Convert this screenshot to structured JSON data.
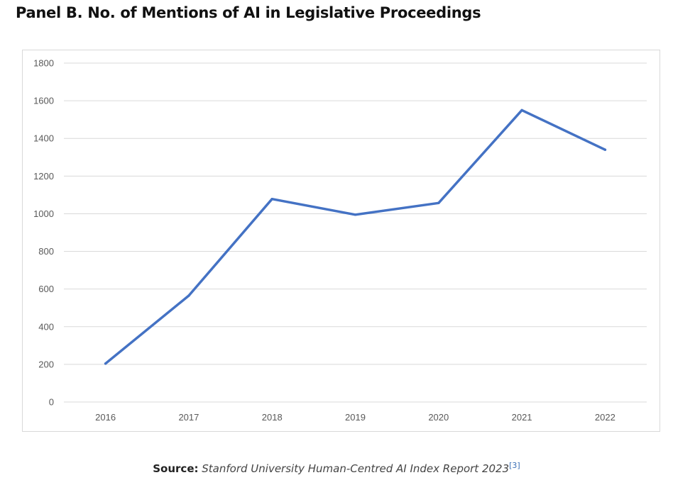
{
  "title": "Panel B. No. of Mentions of AI in Legislative Proceedings",
  "source": {
    "label": "Source:",
    "text": "Stanford University Human-Centred AI Index Report 2023",
    "ref": "[3]"
  },
  "chart_data": {
    "type": "line",
    "title": "",
    "xlabel": "",
    "ylabel": "",
    "categories": [
      "2016",
      "2017",
      "2018",
      "2019",
      "2020",
      "2021",
      "2022"
    ],
    "series": [
      {
        "values": [
          204,
          565,
          1078,
          995,
          1057,
          1550,
          1340
        ],
        "color": "#4472c4"
      }
    ],
    "ylim": [
      0,
      1800
    ],
    "yticks": [
      "0",
      "200",
      "400",
      "600",
      "800",
      "1000",
      "1200",
      "1400",
      "1600",
      "1800"
    ],
    "grid": true,
    "legend": "none",
    "gridline_color": "#d9d9d9"
  }
}
